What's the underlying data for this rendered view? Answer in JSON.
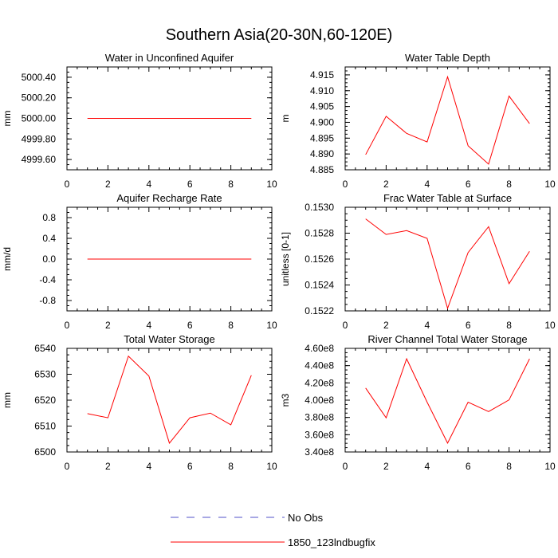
{
  "title": "Southern Asia(20-30N,60-120E)",
  "legend": [
    {
      "label": "No Obs",
      "color": "#5050c8",
      "style": "dashed"
    },
    {
      "label": "1850_123lndbugfix",
      "color": "#ff0000",
      "style": "solid"
    }
  ],
  "chart_data": [
    {
      "type": "line",
      "title": "Water in Unconfined Aquifer",
      "ylabel": "mm",
      "xlim": [
        0,
        10
      ],
      "ylim": [
        4999.5,
        5000.5
      ],
      "xticks": [
        0,
        2,
        4,
        6,
        8,
        10
      ],
      "yticks": [
        4999.6,
        4999.8,
        5000.0,
        5000.2,
        5000.4
      ],
      "ytick_labels": [
        "4999.60",
        "4999.80",
        "5000.00",
        "5000.20",
        "5000.40"
      ],
      "x": [
        1,
        2,
        3,
        4,
        5,
        6,
        7,
        8,
        9
      ],
      "series": [
        {
          "name": "1850_123lndbugfix",
          "values": [
            5000,
            5000,
            5000,
            5000,
            5000,
            5000,
            5000,
            5000,
            5000
          ]
        }
      ]
    },
    {
      "type": "line",
      "title": "Water Table Depth",
      "ylabel": "m",
      "xlim": [
        0,
        10
      ],
      "ylim": [
        4.885,
        4.9175
      ],
      "xticks": [
        0,
        2,
        4,
        6,
        8,
        10
      ],
      "yticks": [
        4.885,
        4.89,
        4.895,
        4.9,
        4.905,
        4.91,
        4.915
      ],
      "ytick_labels": [
        "4.885",
        "4.890",
        "4.895",
        "4.900",
        "4.905",
        "4.910",
        "4.915"
      ],
      "x": [
        1,
        2,
        3,
        4,
        5,
        6,
        7,
        8,
        9
      ],
      "series": [
        {
          "name": "1850_123lndbugfix",
          "values": [
            4.8898,
            4.9019,
            4.8965,
            4.8938,
            4.9144,
            4.8926,
            4.8868,
            4.9083,
            4.8996
          ]
        }
      ]
    },
    {
      "type": "line",
      "title": "Aquifer Recharge Rate",
      "ylabel": "mm/d",
      "xlim": [
        0,
        10
      ],
      "ylim": [
        -1,
        1
      ],
      "xticks": [
        0,
        2,
        4,
        6,
        8,
        10
      ],
      "yticks": [
        -0.8,
        -0.4,
        0,
        0.4,
        0.8
      ],
      "ytick_labels": [
        "-0.8",
        "-0.4",
        "0.0",
        "0.4",
        "0.8"
      ],
      "x": [
        1,
        2,
        3,
        4,
        5,
        6,
        7,
        8,
        9
      ],
      "series": [
        {
          "name": "1850_123lndbugfix",
          "values": [
            0,
            0,
            0,
            0,
            0,
            0,
            0,
            0,
            0
          ]
        }
      ]
    },
    {
      "type": "line",
      "title": "Frac Water Table at Surface",
      "ylabel": "unitless [0-1]",
      "xlim": [
        0,
        10
      ],
      "ylim": [
        0.1522,
        0.153
      ],
      "xticks": [
        0,
        2,
        4,
        6,
        8,
        10
      ],
      "yticks": [
        0.1522,
        0.1524,
        0.1526,
        0.1528,
        0.153
      ],
      "ytick_labels": [
        "0.1522",
        "0.1524",
        "0.1526",
        "0.1528",
        "0.1530"
      ],
      "x": [
        1,
        2,
        3,
        4,
        5,
        6,
        7,
        8,
        9
      ],
      "series": [
        {
          "name": "1850_123lndbugfix",
          "values": [
            0.15291,
            0.15279,
            0.15282,
            0.15276,
            0.15222,
            0.15265,
            0.15285,
            0.15241,
            0.15266
          ]
        }
      ]
    },
    {
      "type": "line",
      "title": "Total Water Storage",
      "ylabel": "mm",
      "xlim": [
        0,
        10
      ],
      "ylim": [
        6500,
        6540
      ],
      "xticks": [
        0,
        2,
        4,
        6,
        8,
        10
      ],
      "yticks": [
        6500,
        6510,
        6520,
        6530,
        6540
      ],
      "ytick_labels": [
        "6500",
        "6510",
        "6520",
        "6530",
        "6540"
      ],
      "x": [
        1,
        2,
        3,
        4,
        5,
        6,
        7,
        8,
        9
      ],
      "series": [
        {
          "name": "1850_123lndbugfix",
          "values": [
            6514.8,
            6513.2,
            6537.0,
            6529.3,
            6503.4,
            6513.2,
            6515.0,
            6510.5,
            6529.6
          ]
        }
      ]
    },
    {
      "type": "line",
      "title": "River Channel Total Water Storage",
      "ylabel": "m3",
      "xlim": [
        0,
        10
      ],
      "ylim": [
        340000000,
        460000000
      ],
      "xticks": [
        0,
        2,
        4,
        6,
        8,
        10
      ],
      "yticks": [
        340000000,
        360000000,
        380000000,
        400000000,
        420000000,
        440000000,
        460000000
      ],
      "ytick_labels": [
        "3.40e8",
        "3.60e8",
        "3.80e8",
        "4.00e8",
        "4.20e8",
        "4.40e8",
        "4.60e8"
      ],
      "x": [
        1,
        2,
        3,
        4,
        5,
        6,
        7,
        8,
        9
      ],
      "series": [
        {
          "name": "1850_123lndbugfix",
          "values": [
            414000000,
            379500000,
            447900000,
            397700000,
            350300000,
            397700000,
            386800000,
            400300000,
            447900000
          ]
        }
      ]
    }
  ]
}
